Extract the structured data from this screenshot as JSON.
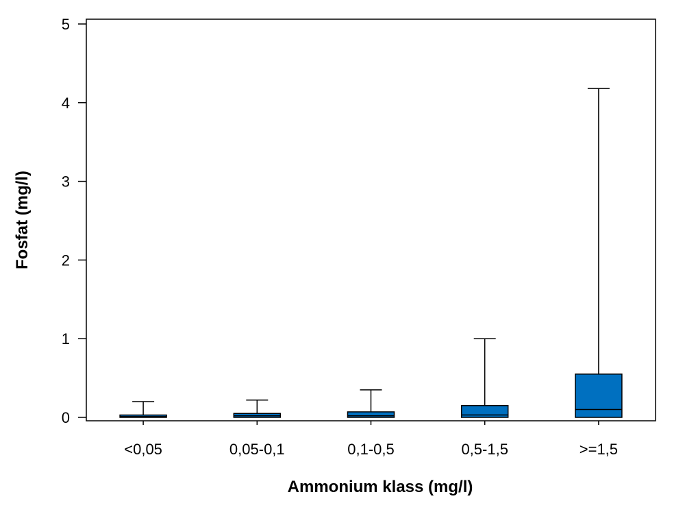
{
  "chart_data": {
    "type": "box",
    "xlabel": "Ammonium klass (mg/l)",
    "ylabel": "Fosfat (mg/l)",
    "ylim": [
      0,
      5
    ],
    "yticks": [
      "0",
      "1",
      "2",
      "3",
      "4",
      "5"
    ],
    "categories": [
      "<0,05",
      "0,05-0,1",
      "0,1-0,5",
      "0,5-1,5",
      ">=1,5"
    ],
    "boxes": [
      {
        "min": 0,
        "q1": 0,
        "median": 0.01,
        "q3": 0.03,
        "max": 0.2
      },
      {
        "min": 0,
        "q1": 0,
        "median": 0.02,
        "q3": 0.05,
        "max": 0.22
      },
      {
        "min": 0,
        "q1": 0,
        "median": 0.02,
        "q3": 0.07,
        "max": 0.35
      },
      {
        "min": 0,
        "q1": 0,
        "median": 0.03,
        "q3": 0.15,
        "max": 1.0
      },
      {
        "min": 0,
        "q1": 0,
        "median": 0.1,
        "q3": 0.55,
        "max": 4.18
      }
    ],
    "box_color": "#0070C0",
    "grid": false,
    "legend": "none"
  }
}
